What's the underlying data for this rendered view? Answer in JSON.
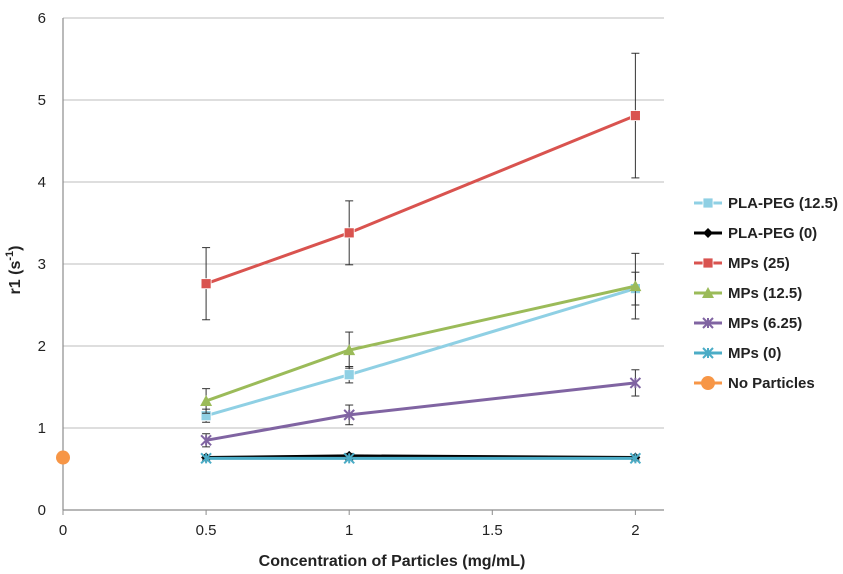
{
  "chart_data": {
    "type": "line",
    "title": "",
    "xlabel": "Concentration of Particles (mg/mL)",
    "ylabel": "r1 (s",
    "ylabel_sup": "-1",
    "ylabel_close": ")",
    "xlim": [
      0,
      2.1
    ],
    "ylim": [
      0,
      6
    ],
    "xticks": [
      "0",
      "0.5",
      "1",
      "1.5",
      "2"
    ],
    "yticks": [
      "0",
      "1",
      "2",
      "3",
      "4",
      "5",
      "6"
    ],
    "grid": "horizontal",
    "legend_position": "right",
    "series": [
      {
        "name": "PLA-PEG (12.5)",
        "color": "#8fd0e4",
        "marker": "square",
        "x": [
          0.5,
          1,
          2
        ],
        "y": [
          1.15,
          1.65,
          2.7
        ],
        "err": [
          0.08,
          0.1,
          0.2
        ]
      },
      {
        "name": "PLA-PEG (0)",
        "color": "#000000",
        "marker": "diamond",
        "x": [
          0.5,
          1,
          2
        ],
        "y": [
          0.64,
          0.66,
          0.64
        ],
        "err": [
          0.03,
          0.03,
          0.03
        ]
      },
      {
        "name": "MPs (25)",
        "color": "#d9534f",
        "marker": "square",
        "x": [
          0.5,
          1,
          2
        ],
        "y": [
          2.76,
          3.38,
          4.81
        ],
        "err": [
          0.44,
          0.39,
          0.76
        ]
      },
      {
        "name": "MPs (12.5)",
        "color": "#9bbb59",
        "marker": "triangle",
        "x": [
          0.5,
          1,
          2
        ],
        "y": [
          1.33,
          1.95,
          2.73
        ],
        "err": [
          0.15,
          0.22,
          0.4
        ]
      },
      {
        "name": "MPs (6.25)",
        "color": "#8064a2",
        "marker": "x",
        "x": [
          0.5,
          1,
          2
        ],
        "y": [
          0.85,
          1.16,
          1.55
        ],
        "err": [
          0.08,
          0.12,
          0.16
        ]
      },
      {
        "name": "MPs (0)",
        "color": "#4bacc6",
        "marker": "x",
        "x": [
          0.5,
          1,
          2
        ],
        "y": [
          0.63,
          0.63,
          0.63
        ],
        "err": [
          0.02,
          0.02,
          0.02
        ]
      },
      {
        "name": "No Particles",
        "color": "#f79646",
        "marker": "circle",
        "x": [
          0
        ],
        "y": [
          0.64
        ],
        "err": [
          0
        ]
      }
    ]
  }
}
